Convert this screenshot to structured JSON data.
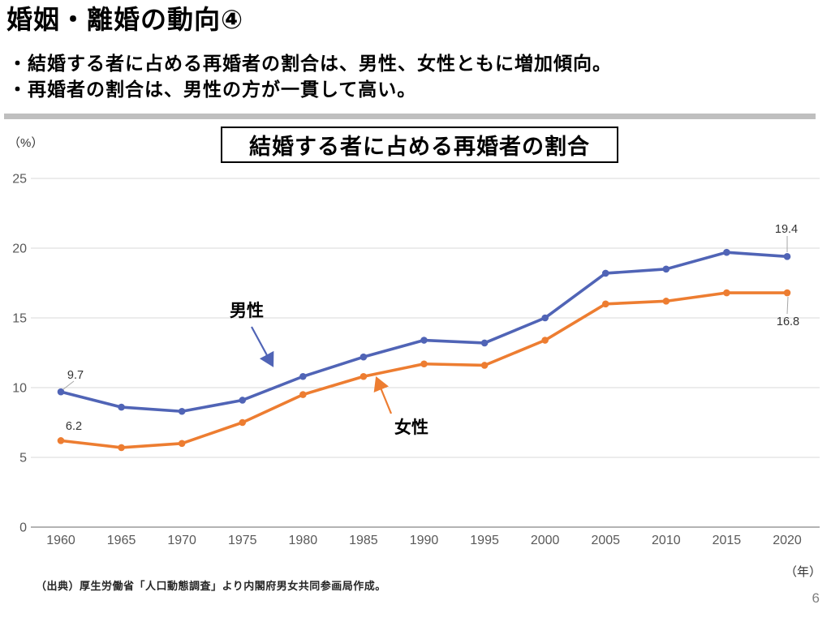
{
  "page": {
    "title": "婚姻・離婚の動向④",
    "bullets": [
      "・結婚する者に占める再婚者の割合は、男性、女性ともに増加傾向。",
      "・再婚者の割合は、男性の方が一貫して高い。"
    ],
    "source": "（出典）厚生労働省「人口動態調査」より内閣府男女共同参画局作成。",
    "page_number": "6"
  },
  "chart_data": {
    "type": "line",
    "title": "結婚する者に占める再婚者の割合",
    "x": [
      "1960",
      "1965",
      "1970",
      "1975",
      "1980",
      "1985",
      "1990",
      "1995",
      "2000",
      "2005",
      "2010",
      "2015",
      "2020"
    ],
    "x_unit_label": "（年）",
    "y_unit_label": "（%）",
    "ylim": [
      0,
      25
    ],
    "yticks": [
      0,
      5,
      10,
      15,
      20,
      25
    ],
    "grid": true,
    "legend": "inline-annotations",
    "series": [
      {
        "name": "男性",
        "color": "#5064B6",
        "values": [
          9.7,
          8.6,
          8.3,
          9.1,
          10.8,
          12.2,
          13.4,
          13.2,
          15.0,
          18.2,
          18.5,
          19.7,
          19.4
        ]
      },
      {
        "name": "女性",
        "color": "#ED7D31",
        "values": [
          6.2,
          5.7,
          6.0,
          7.5,
          9.5,
          10.8,
          11.7,
          11.6,
          13.4,
          16.0,
          16.2,
          16.8,
          16.8
        ]
      }
    ],
    "point_labels": [
      {
        "series": 0,
        "point": 0,
        "text": "9.7"
      },
      {
        "series": 1,
        "point": 0,
        "text": "6.2"
      },
      {
        "series": 0,
        "point": 12,
        "text": "19.4"
      },
      {
        "series": 1,
        "point": 12,
        "text": "16.8"
      }
    ],
    "annotations": [
      {
        "series": 0,
        "text": "男性"
      },
      {
        "series": 1,
        "text": "女性"
      }
    ]
  },
  "colors": {
    "separator_bar": "#BFBFBF",
    "gridline": "#D9D9D9",
    "axis_line": "#B3B3B3",
    "tick_label": "#595959",
    "data_label": "#333333",
    "leader_line": "#A6A6A6",
    "annotation_text": "#000000",
    "page_number": "#808080"
  }
}
